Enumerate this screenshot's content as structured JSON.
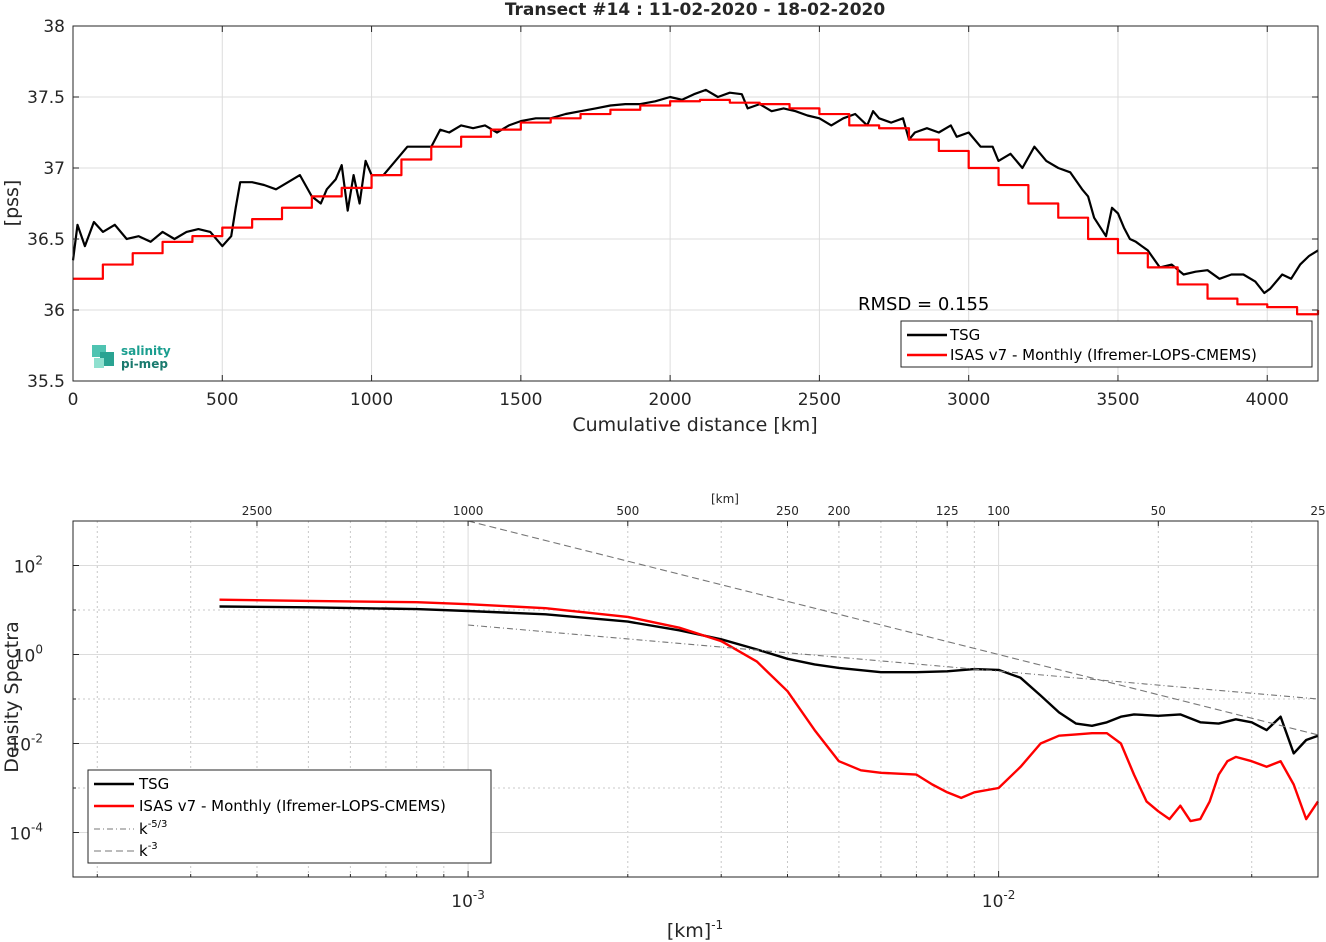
{
  "logo": {
    "line1": "salinity",
    "line2": "pi-mep",
    "color": "#1a9e8f"
  },
  "chart_data": [
    {
      "type": "line",
      "title": "Transect #14 : 11-02-2020 - 18-02-2020",
      "xlabel": "Cumulative distance [km]",
      "ylabel": "[pss]",
      "xlim": [
        0,
        4170
      ],
      "ylim": [
        35.5,
        38
      ],
      "xticks": [
        0,
        500,
        1000,
        1500,
        2000,
        2500,
        3000,
        3500,
        4000
      ],
      "yticks": [
        35.5,
        36,
        36.5,
        37,
        37.5,
        38
      ],
      "grid": true,
      "legend_position": "bottom-right",
      "annotation": "RMSD = 0.155",
      "series": [
        {
          "name": "TSG",
          "color": "#000000",
          "x": [
            0,
            15,
            40,
            70,
            100,
            140,
            180,
            220,
            260,
            300,
            340,
            380,
            420,
            460,
            500,
            530,
            545,
            560,
            600,
            640,
            680,
            720,
            760,
            800,
            830,
            850,
            880,
            900,
            920,
            940,
            960,
            980,
            1000,
            1040,
            1080,
            1120,
            1160,
            1200,
            1230,
            1260,
            1300,
            1340,
            1380,
            1420,
            1460,
            1500,
            1550,
            1600,
            1650,
            1700,
            1750,
            1800,
            1850,
            1900,
            1950,
            2000,
            2040,
            2080,
            2120,
            2160,
            2200,
            2240,
            2260,
            2300,
            2340,
            2380,
            2420,
            2460,
            2500,
            2540,
            2580,
            2620,
            2660,
            2680,
            2700,
            2740,
            2780,
            2800,
            2820,
            2860,
            2900,
            2940,
            2960,
            3000,
            3040,
            3080,
            3100,
            3140,
            3180,
            3220,
            3260,
            3300,
            3340,
            3380,
            3400,
            3420,
            3460,
            3480,
            3500,
            3520,
            3540,
            3560,
            3580,
            3600,
            3640,
            3680,
            3720,
            3760,
            3800,
            3840,
            3880,
            3920,
            3960,
            3990,
            4010,
            4050,
            4080,
            4110,
            4140,
            4170
          ],
          "y": [
            36.35,
            36.6,
            36.45,
            36.62,
            36.55,
            36.6,
            36.5,
            36.52,
            36.48,
            36.55,
            36.5,
            36.55,
            36.57,
            36.55,
            36.45,
            36.52,
            36.72,
            36.9,
            36.9,
            36.88,
            36.85,
            36.9,
            36.95,
            36.8,
            36.75,
            36.85,
            36.92,
            37.02,
            36.7,
            36.95,
            36.75,
            37.05,
            36.95,
            36.95,
            37.05,
            37.15,
            37.15,
            37.15,
            37.27,
            37.25,
            37.3,
            37.28,
            37.3,
            37.25,
            37.3,
            37.33,
            37.35,
            37.35,
            37.38,
            37.4,
            37.42,
            37.44,
            37.45,
            37.45,
            37.47,
            37.5,
            37.48,
            37.52,
            37.55,
            37.5,
            37.53,
            37.52,
            37.42,
            37.45,
            37.4,
            37.42,
            37.4,
            37.37,
            37.35,
            37.3,
            37.35,
            37.38,
            37.3,
            37.4,
            37.35,
            37.32,
            37.35,
            37.2,
            37.25,
            37.28,
            37.25,
            37.3,
            37.22,
            37.25,
            37.15,
            37.15,
            37.05,
            37.1,
            37.0,
            37.15,
            37.05,
            37.0,
            36.97,
            36.85,
            36.8,
            36.65,
            36.52,
            36.72,
            36.68,
            36.58,
            36.5,
            36.48,
            36.45,
            36.42,
            36.3,
            36.32,
            36.25,
            36.27,
            36.28,
            36.22,
            36.25,
            36.25,
            36.2,
            36.12,
            36.15,
            36.25,
            36.22,
            36.32,
            36.38,
            36.42
          ]
        },
        {
          "name": "ISAS v7 - Monthly (Ifremer-LOPS-CMEMS)",
          "color": "#ff0000",
          "x": [
            0,
            100,
            200,
            300,
            400,
            500,
            600,
            700,
            800,
            900,
            1000,
            1100,
            1200,
            1300,
            1400,
            1500,
            1600,
            1700,
            1800,
            1900,
            2000,
            2100,
            2200,
            2300,
            2400,
            2500,
            2600,
            2700,
            2800,
            2900,
            3000,
            3100,
            3200,
            3300,
            3400,
            3500,
            3600,
            3700,
            3800,
            3900,
            4000,
            4100,
            4170
          ],
          "y": [
            36.22,
            36.32,
            36.4,
            36.48,
            36.52,
            36.58,
            36.64,
            36.72,
            36.8,
            36.86,
            36.95,
            37.06,
            37.15,
            37.22,
            37.27,
            37.32,
            37.35,
            37.38,
            37.41,
            37.44,
            37.47,
            37.48,
            37.46,
            37.45,
            37.42,
            37.38,
            37.3,
            37.28,
            37.2,
            37.12,
            37.0,
            36.88,
            36.75,
            36.65,
            36.5,
            36.4,
            36.3,
            36.18,
            36.08,
            36.04,
            36.02,
            35.97,
            36.0
          ]
        }
      ]
    },
    {
      "type": "line",
      "xlabel": "[km]",
      "xlabel_bottom": "[km]",
      "xlabel_bottom_sup": "-1",
      "xlabel_top": "[km]",
      "ylabel": "Density Spectra",
      "xscale": "log",
      "yscale": "log",
      "xlim": [
        0.00018,
        0.04
      ],
      "ylim": [
        1e-05,
        1000
      ],
      "xticks": [
        0.001,
        0.01
      ],
      "xtick_labels": [
        {
          "base": "10",
          "exp": "-3"
        },
        {
          "base": "10",
          "exp": "-2"
        }
      ],
      "yticks": [
        0.0001,
        0.01,
        1,
        100
      ],
      "ytick_labels": [
        {
          "base": "10",
          "exp": "-4"
        },
        {
          "base": "10",
          "exp": "-2"
        },
        {
          "base": "10",
          "exp": "0"
        },
        {
          "base": "10",
          "exp": "2"
        }
      ],
      "top_axis_km": [
        2500,
        1000,
        500,
        250,
        200,
        125,
        100,
        50,
        25
      ],
      "grid": true,
      "legend_position": "bottom-left",
      "series": [
        {
          "name": "TSG",
          "color": "#000000",
          "style": "solid",
          "x": [
            0.00034,
            0.0005,
            0.0008,
            0.001,
            0.0014,
            0.002,
            0.0025,
            0.003,
            0.0035,
            0.004,
            0.0045,
            0.005,
            0.006,
            0.007,
            0.008,
            0.009,
            0.01,
            0.011,
            0.012,
            0.013,
            0.014,
            0.015,
            0.016,
            0.017,
            0.018,
            0.02,
            0.022,
            0.024,
            0.026,
            0.028,
            0.03,
            0.032,
            0.034,
            0.036,
            0.038,
            0.04
          ],
          "y": [
            12,
            11.5,
            10.5,
            9.5,
            8,
            5.5,
            3.5,
            2.2,
            1.3,
            0.8,
            0.6,
            0.5,
            0.4,
            0.4,
            0.42,
            0.47,
            0.45,
            0.3,
            0.12,
            0.05,
            0.028,
            0.025,
            0.03,
            0.04,
            0.045,
            0.042,
            0.045,
            0.03,
            0.028,
            0.035,
            0.03,
            0.02,
            0.04,
            0.006,
            0.012,
            0.015
          ]
        },
        {
          "name": "ISAS v7 - Monthly (Ifremer-LOPS-CMEMS)",
          "color": "#ff0000",
          "style": "solid",
          "x": [
            0.00034,
            0.0005,
            0.0008,
            0.001,
            0.0014,
            0.002,
            0.0025,
            0.003,
            0.0035,
            0.004,
            0.0045,
            0.005,
            0.0055,
            0.006,
            0.007,
            0.0075,
            0.008,
            0.0085,
            0.009,
            0.01,
            0.011,
            0.012,
            0.013,
            0.014,
            0.015,
            0.016,
            0.017,
            0.018,
            0.019,
            0.02,
            0.021,
            0.022,
            0.023,
            0.024,
            0.025,
            0.026,
            0.027,
            0.028,
            0.03,
            0.032,
            0.034,
            0.036,
            0.038,
            0.04
          ],
          "y": [
            17,
            16,
            15,
            13.5,
            11,
            7,
            4,
            2,
            0.7,
            0.15,
            0.02,
            0.004,
            0.0025,
            0.0022,
            0.002,
            0.0012,
            0.0008,
            0.0006,
            0.0008,
            0.001,
            0.003,
            0.01,
            0.015,
            0.016,
            0.017,
            0.017,
            0.01,
            0.002,
            0.0005,
            0.0003,
            0.0002,
            0.0004,
            0.00018,
            0.0002,
            0.0005,
            0.002,
            0.004,
            0.005,
            0.004,
            0.003,
            0.004,
            0.0012,
            0.0002,
            0.0005
          ]
        },
        {
          "name": "k",
          "name_sup": "-5/3",
          "color": "#777777",
          "style": "dashdot",
          "x": [
            0.001,
            0.04
          ],
          "y": [
            4.6,
            0.1
          ]
        },
        {
          "name": "k",
          "name_sup": "-3",
          "color": "#777777",
          "style": "dashed",
          "x": [
            0.001,
            0.04
          ],
          "y": [
            1000,
            0.0156
          ]
        }
      ]
    }
  ]
}
